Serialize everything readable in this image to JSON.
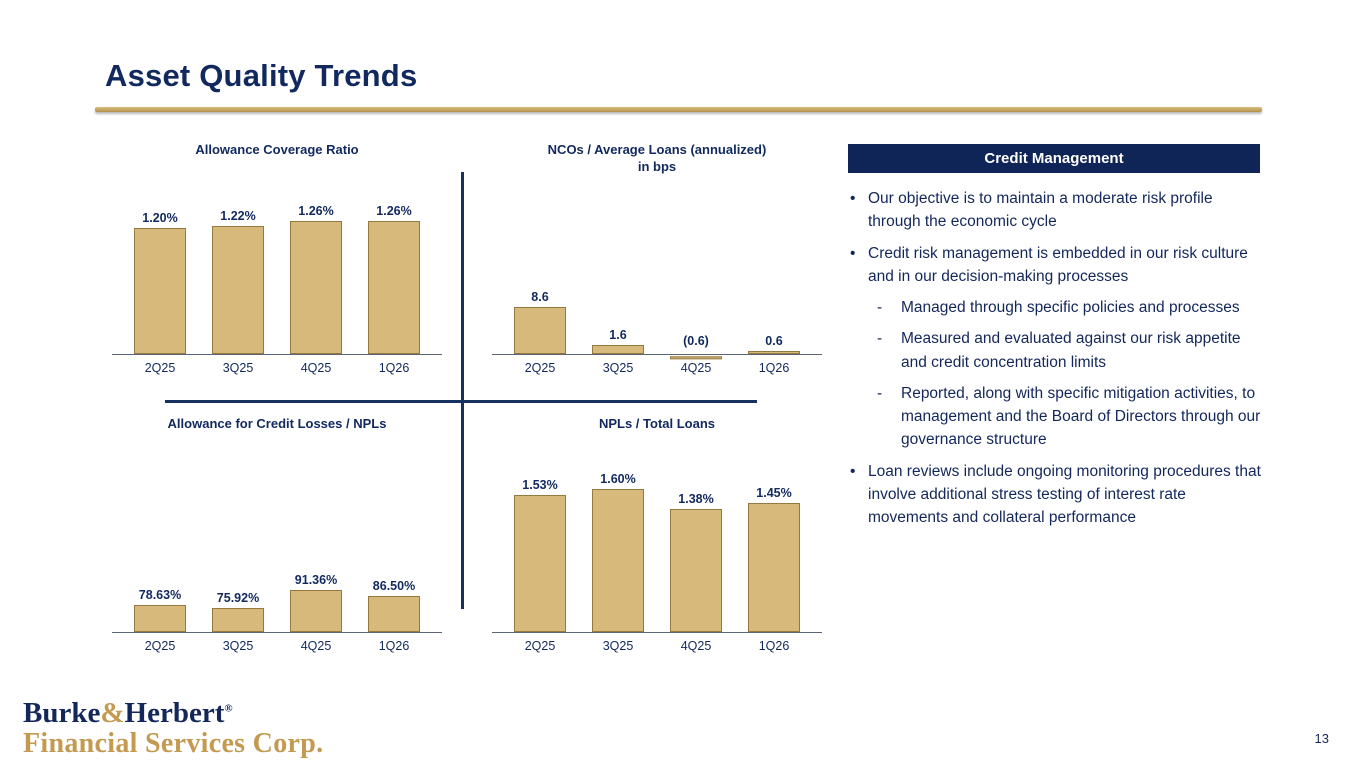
{
  "slide": {
    "title": "Asset Quality Trends",
    "page_number": "13"
  },
  "logo": {
    "name_part1": "Burke",
    "name_amp": "&",
    "name_part2": "Herbert",
    "registered_mark": "®",
    "line2": "Financial Services Corp."
  },
  "credit_management": {
    "header": "Credit Management",
    "bullets": [
      {
        "level": 1,
        "marker": "•",
        "text": "Our objective is to maintain a moderate risk profile through the economic cycle"
      },
      {
        "level": 1,
        "marker": "•",
        "text": "Credit risk management is embedded in our risk culture and in our decision-making processes"
      },
      {
        "level": 2,
        "marker": "-",
        "text": "Managed through specific policies and processes"
      },
      {
        "level": 2,
        "marker": "-",
        "text": "Measured and evaluated against our risk appetite and credit concentration limits"
      },
      {
        "level": 2,
        "marker": "-",
        "text": "Reported, along with specific mitigation activities, to management and the Board of Directors through our governance structure"
      },
      {
        "level": 1,
        "marker": "•",
        "text": "Loan reviews include ongoing monitoring procedures that involve additional stress testing of interest rate movements and collateral performance"
      }
    ]
  },
  "chart_data": [
    {
      "type": "bar",
      "title": "Allowance Coverage Ratio",
      "categories": [
        "2Q25",
        "3Q25",
        "4Q25",
        "1Q26"
      ],
      "values": [
        1.2,
        1.22,
        1.26,
        1.26
      ],
      "labels": [
        "1.20%",
        "1.22%",
        "1.26%",
        "1.26%"
      ],
      "unit": "%",
      "ylim": [
        0,
        1.32
      ],
      "bar_color": "#d8b97c"
    },
    {
      "type": "bar",
      "title": "NCOs / Average Loans (annualized)",
      "subtitle": "in bps",
      "categories": [
        "2Q25",
        "3Q25",
        "4Q25",
        "1Q26"
      ],
      "values": [
        8.6,
        1.6,
        -0.6,
        0.6
      ],
      "labels": [
        "8.6",
        "1.6",
        "(0.6)",
        "0.6"
      ],
      "unit": "bps",
      "ylim": [
        -1,
        8.8
      ],
      "bar_color": "#d8b97c"
    },
    {
      "type": "bar",
      "title": "Allowance for Credit Losses / NPLs",
      "categories": [
        "2Q25",
        "3Q25",
        "4Q25",
        "1Q26"
      ],
      "values": [
        78.63,
        75.92,
        91.36,
        86.5
      ],
      "labels": [
        "78.63%",
        "75.92%",
        "91.36%",
        "86.50%"
      ],
      "unit": "%",
      "ylim": [
        55,
        95
      ],
      "bar_color": "#d8b97c"
    },
    {
      "type": "bar",
      "title": "NPLs / Total Loans",
      "categories": [
        "2Q25",
        "3Q25",
        "4Q25",
        "1Q26"
      ],
      "values": [
        1.53,
        1.6,
        1.38,
        1.45
      ],
      "labels": [
        "1.53%",
        "1.60%",
        "1.38%",
        "1.45%"
      ],
      "unit": "%",
      "ylim": [
        0,
        1.68
      ],
      "bar_color": "#d8b97c"
    }
  ]
}
